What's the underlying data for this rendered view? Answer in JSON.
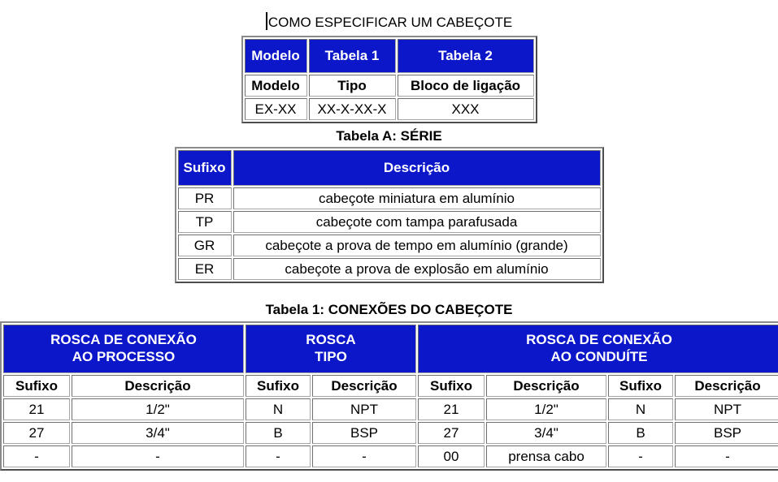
{
  "colors": {
    "header_bg": "#0c17c9",
    "header_text": "#ffffff",
    "body_bg": "#ffffff",
    "text": "#000000",
    "border_dark": "#4d4d4d",
    "border_light": "#8a8a8a"
  },
  "page": {
    "title": "COMO ESPECIFICAR UM CABEÇOTE"
  },
  "spec_table": {
    "header": [
      "Modelo",
      "Tabela 1",
      "Tabela 2"
    ],
    "subheader": [
      "Modelo",
      "Tipo",
      "Bloco de ligação"
    ],
    "values": [
      "EX-XX",
      "XX-X-XX-X",
      "XXX"
    ]
  },
  "tabela_a": {
    "title": "Tabela A: SÉRIE",
    "columns": [
      "Sufixo",
      "Descrição"
    ],
    "rows": [
      [
        "PR",
        "cabeçote miniatura em alumínio"
      ],
      [
        "TP",
        "cabeçote com tampa parafusada"
      ],
      [
        "GR",
        "cabeçote a prova de tempo em alumínio (grande)"
      ],
      [
        "ER",
        "cabeçote a prova de explosão em alumínio"
      ]
    ]
  },
  "tabela_1": {
    "title": "Tabela 1: CONEXÕES DO CABEÇOTE",
    "groups": [
      {
        "line1": "ROSCA DE CONEXÃO",
        "line2": "AO PROCESSO"
      },
      {
        "line1": "ROSCA",
        "line2": "TIPO"
      },
      {
        "line1": "ROSCA DE CONEXÃO",
        "line2": "AO CONDUÍTE"
      }
    ],
    "columns": [
      "Sufixo",
      "Descrição",
      "Sufixo",
      "Descrição",
      "Sufixo",
      "Descrição",
      "Sufixo",
      "Descrição"
    ],
    "rows": [
      [
        "21",
        "1/2\"",
        "N",
        "NPT",
        "21",
        "1/2\"",
        "N",
        "NPT"
      ],
      [
        "27",
        "3/4\"",
        "B",
        "BSP",
        "27",
        "3/4\"",
        "B",
        "BSP"
      ],
      [
        "-",
        "-",
        "-",
        "-",
        "00",
        "prensa cabo",
        "-",
        "-"
      ]
    ]
  }
}
